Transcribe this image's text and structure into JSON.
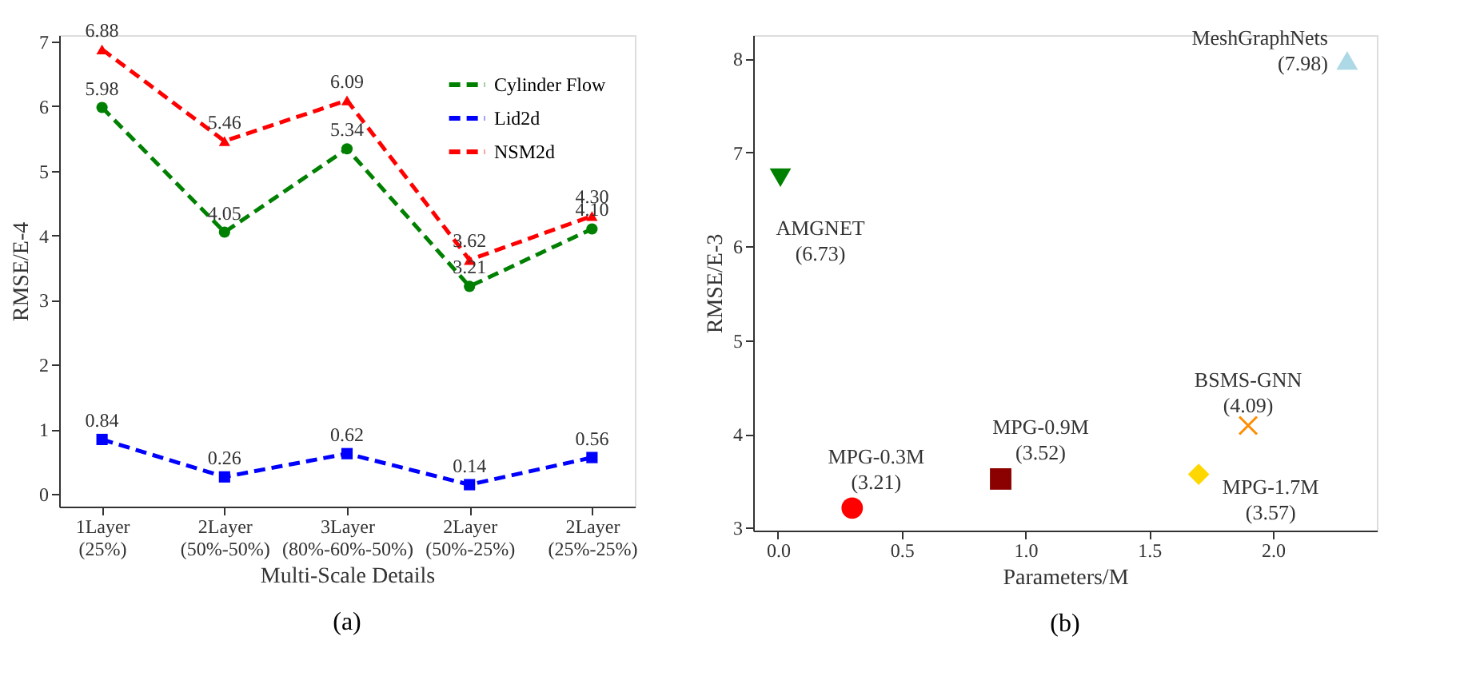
{
  "chart_data": [
    {
      "type": "line",
      "title": "(a)",
      "xlabel": "Multi-Scale Details",
      "ylabel": "RMSE/E-4",
      "categories": [
        "1Layer\n(25%)",
        "2Layer\n(50%-50%)",
        "3Layer\n(80%-60%-50%)",
        "2Layer\n(50%-25%)",
        "2Layer\n(25%-25%)"
      ],
      "series": [
        {
          "name": "Cylinder Flow",
          "color": "#008000",
          "marker": "circle",
          "values": [
            5.98,
            4.05,
            5.34,
            3.21,
            4.1
          ],
          "value_labels": [
            "5.98",
            "4.05",
            "5.34",
            "3.21",
            "4.10"
          ]
        },
        {
          "name": "Lid2d",
          "color": "#0000ff",
          "marker": "square",
          "values": [
            0.84,
            0.26,
            0.62,
            0.14,
            0.56
          ],
          "value_labels": [
            "0.84",
            "0.26",
            "0.62",
            "0.14",
            "0.56"
          ]
        },
        {
          "name": "NSM2d",
          "color": "#ff0000",
          "marker": "triangle",
          "values": [
            6.88,
            5.46,
            6.09,
            3.62,
            4.3
          ],
          "value_labels": [
            "6.88",
            "5.46",
            "6.09",
            "3.62",
            "4.30"
          ]
        }
      ],
      "ylim": [
        -0.2,
        7.1
      ],
      "yticks": [
        0,
        1,
        2,
        3,
        4,
        5,
        6,
        7
      ],
      "line_style": "dashed",
      "legend": "top right",
      "grid": false
    },
    {
      "type": "scatter",
      "title": "(b)",
      "xlabel": "Parameters/M",
      "ylabel": "RMSE/E-3",
      "series": [
        {
          "name": "AMGNET",
          "color": "#008000",
          "marker": "triangle-down",
          "x": [
            0.01
          ],
          "values": [
            6.73
          ],
          "value_labels": [
            "(6.73)"
          ]
        },
        {
          "name": "MPG-0.3M",
          "color": "#ff0000",
          "marker": "circle",
          "x": [
            0.3
          ],
          "values": [
            3.21
          ],
          "value_labels": [
            "(3.21)"
          ]
        },
        {
          "name": "MPG-0.9M",
          "color": "#8b0000",
          "marker": "square",
          "x": [
            0.9
          ],
          "values": [
            3.52
          ],
          "value_labels": [
            "(3.52)"
          ]
        },
        {
          "name": "MPG-1.7M",
          "color": "#ffd700",
          "marker": "diamond",
          "x": [
            1.7
          ],
          "values": [
            3.57
          ],
          "value_labels": [
            "(3.57)"
          ]
        },
        {
          "name": "BSMS-GNN",
          "color": "#ff8c00",
          "marker": "cross",
          "x": [
            1.9
          ],
          "values": [
            4.09
          ],
          "value_labels": [
            "(4.09)"
          ]
        },
        {
          "name": "MeshGraphNets",
          "color": "#add8e6",
          "marker": "triangle",
          "x": [
            2.3
          ],
          "values": [
            7.98
          ],
          "value_labels": [
            "(7.98)"
          ]
        }
      ],
      "xlim": [
        -0.1,
        2.42
      ],
      "xticks": [
        {
          "value": 0,
          "label": "0.0"
        },
        {
          "value": 0.5,
          "label": "0.5"
        },
        {
          "value": 1,
          "label": "1.0"
        },
        {
          "value": 1.5,
          "label": "1.5"
        },
        {
          "value": 2,
          "label": "2.0"
        }
      ],
      "ylim": [
        2.97,
        8.25
      ],
      "yticks": [
        3,
        4,
        5,
        6,
        7,
        8
      ],
      "legend": false,
      "grid": false
    }
  ]
}
